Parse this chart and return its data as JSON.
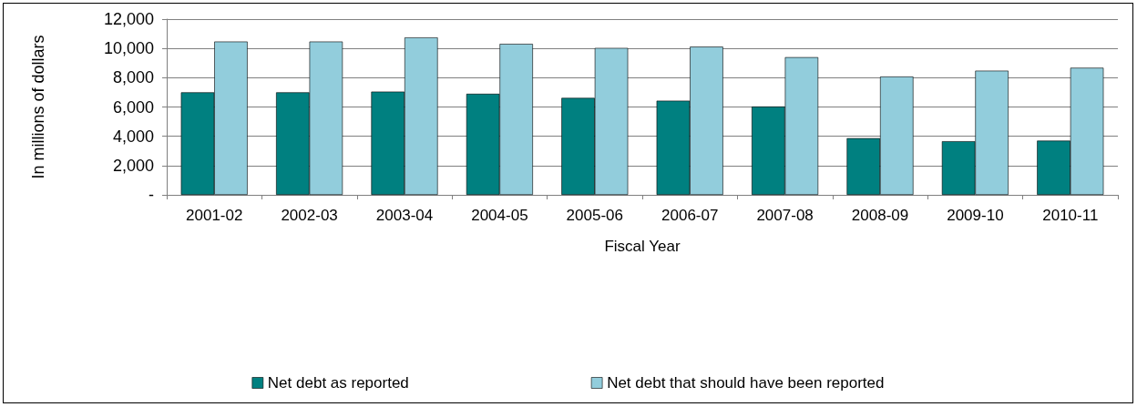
{
  "chart_data": {
    "type": "bar",
    "xlabel": "Fiscal Year",
    "ylabel": "In millions of dollars",
    "categories": [
      "2001-02",
      "2002-03",
      "2003-04",
      "2004-05",
      "2005-06",
      "2006-07",
      "2007-08",
      "2008-09",
      "2009-10",
      "2010-11"
    ],
    "series": [
      {
        "name": "Net debt as reported",
        "color": "#008080",
        "values": [
          7000,
          7000,
          7050,
          6900,
          6620,
          6430,
          6030,
          3870,
          3660,
          3700
        ]
      },
      {
        "name": "Net debt that should have been reported",
        "color": "#92cddc",
        "values": [
          10470,
          10470,
          10750,
          10310,
          10030,
          10120,
          9400,
          8080,
          8480,
          8680
        ]
      }
    ],
    "ylim": [
      0,
      12000
    ],
    "yticks": [
      {
        "value": 0,
        "label": "-"
      },
      {
        "value": 2000,
        "label": "2,000"
      },
      {
        "value": 4000,
        "label": "4,000"
      },
      {
        "value": 6000,
        "label": "6,000"
      },
      {
        "value": 8000,
        "label": "8,000"
      },
      {
        "value": 10000,
        "label": "10,000"
      },
      {
        "value": 12000,
        "label": "12,000"
      }
    ],
    "grid": "y",
    "legend": "bottom"
  }
}
